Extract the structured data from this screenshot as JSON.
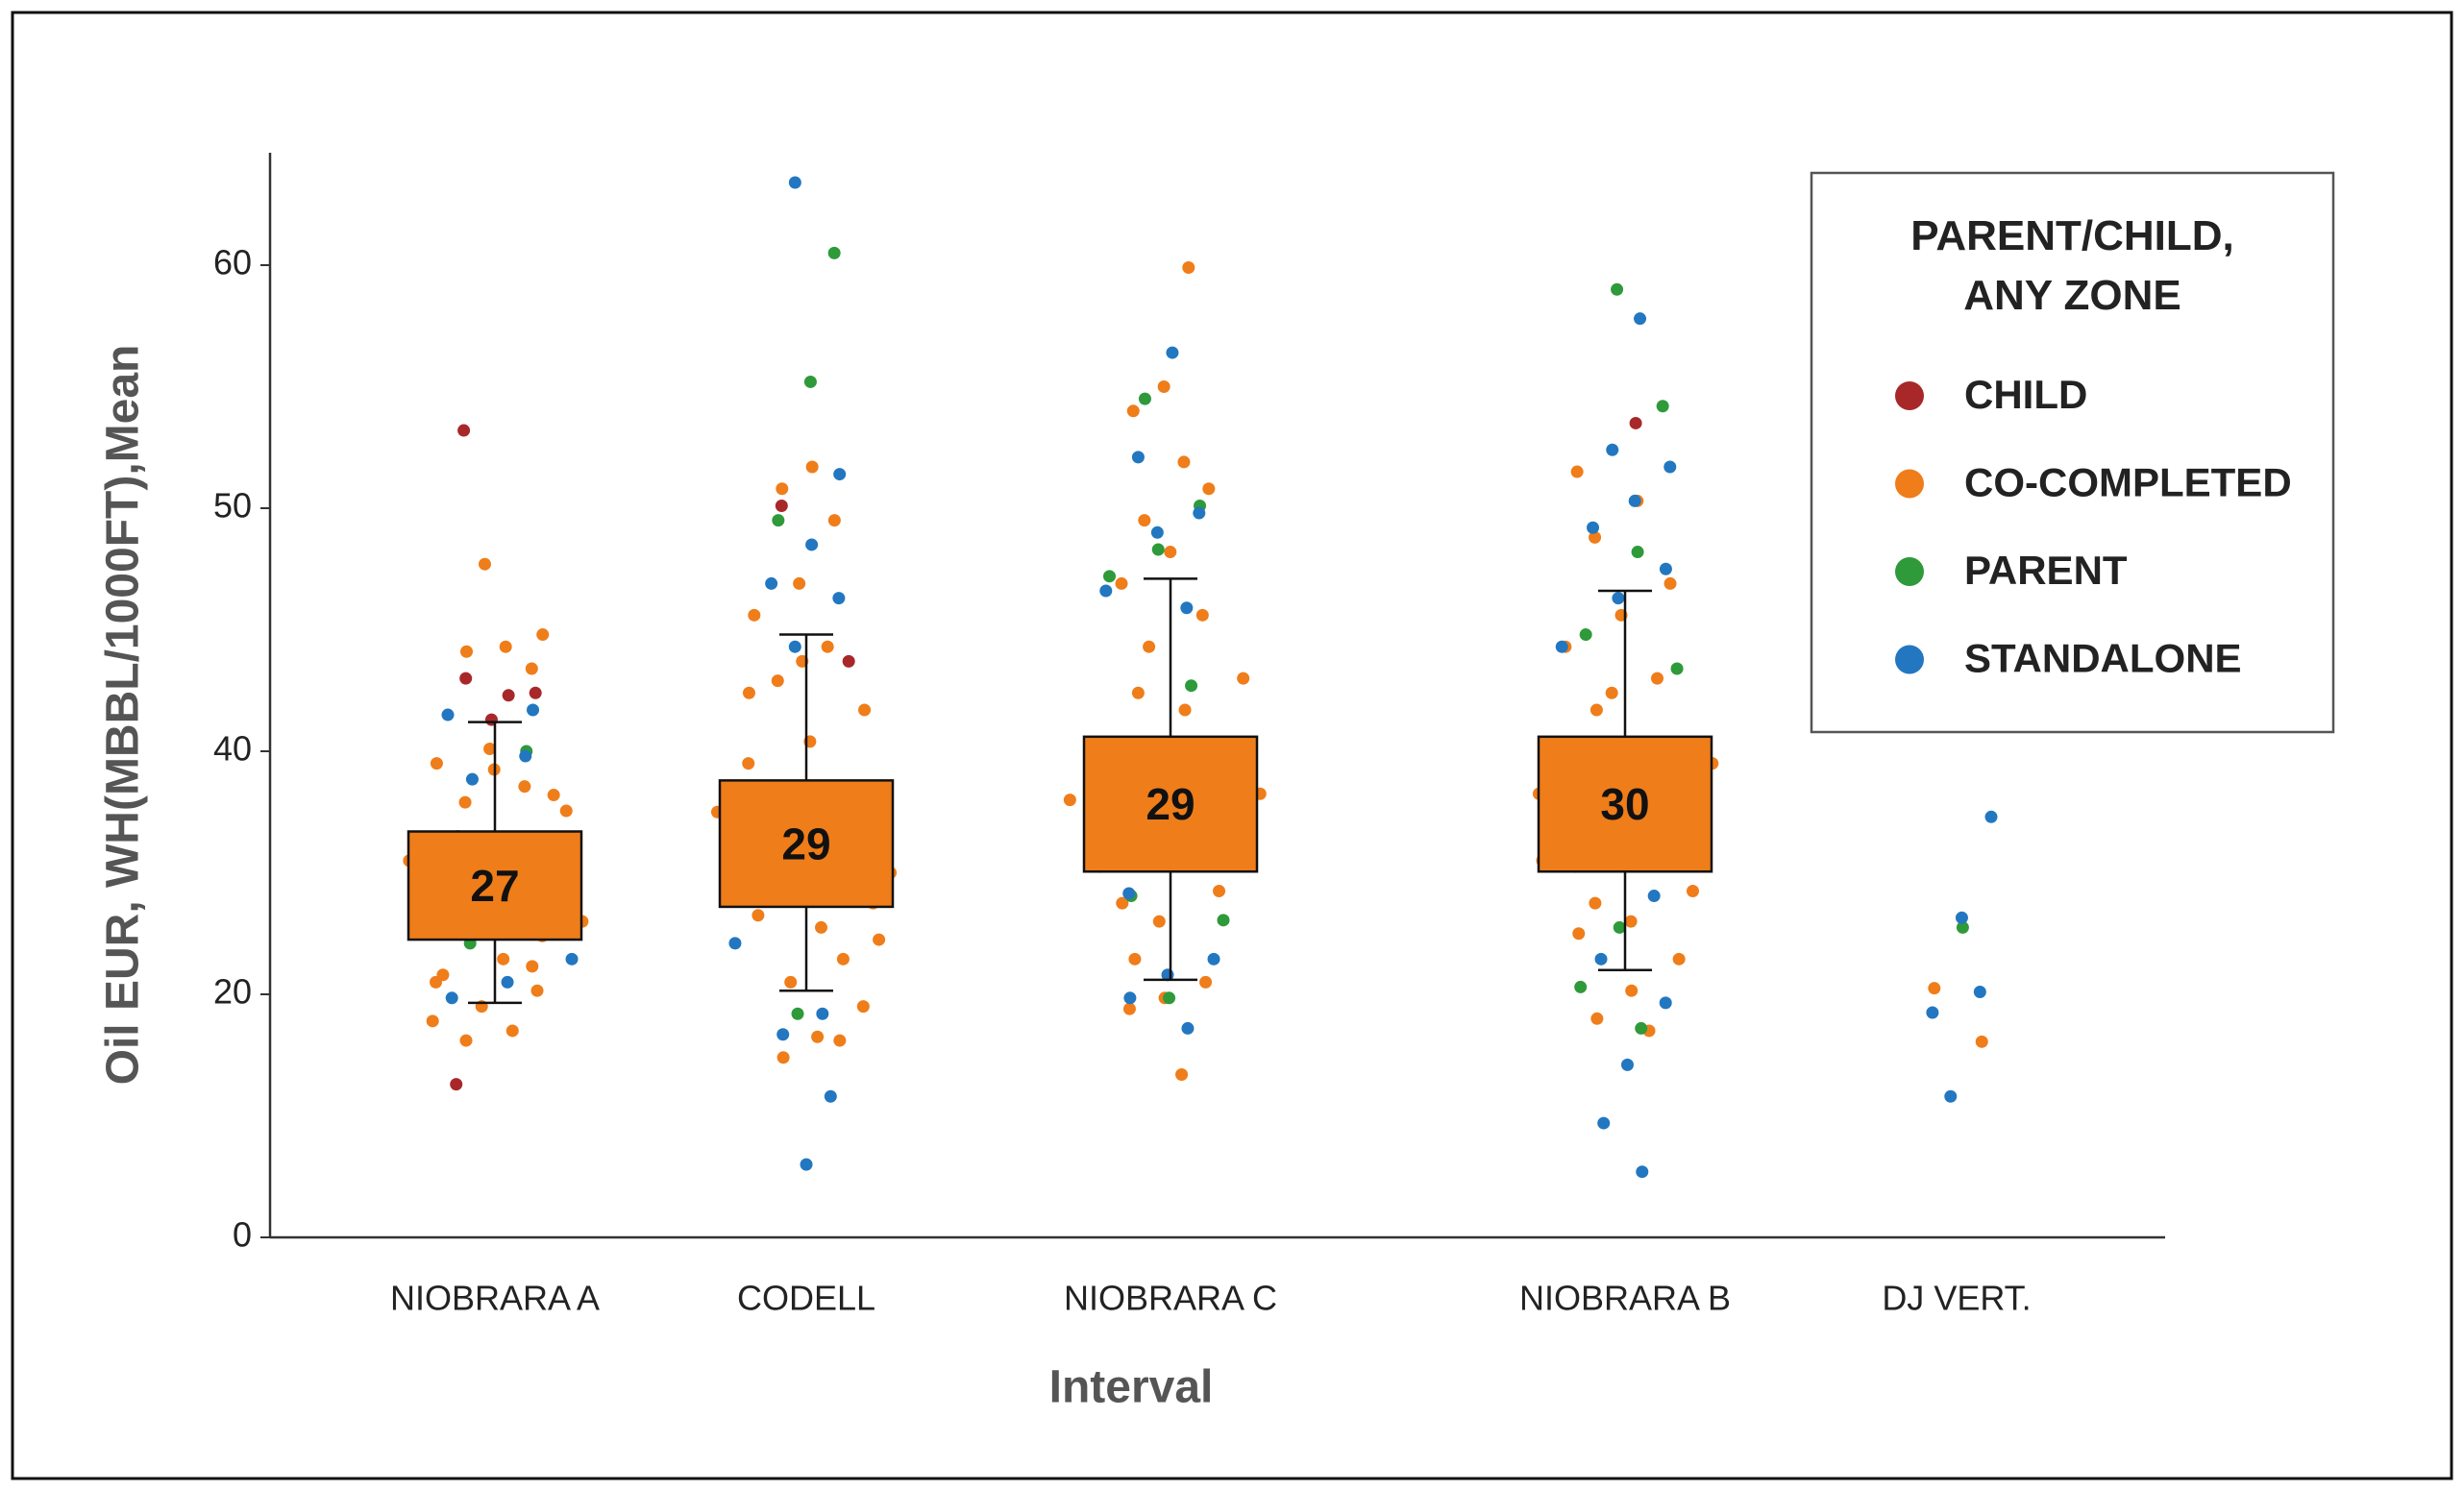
{
  "chart_data": {
    "type": "box-strip",
    "y_label": "Oil EUR, WH(MBBL/1000FT),Mean",
    "x_label": "Interval",
    "categories": [
      "NIOBRARA A",
      "CODELL",
      "NIOBRARA C",
      "NIOBRARA B",
      "DJ VERT."
    ],
    "ylim": [
      0,
      65
    ],
    "yticks": [
      0,
      20,
      40,
      50,
      60
    ],
    "legend_title": "PARENT/CHILD, ANY ZONE",
    "legend_position": "upper right",
    "boxes": {
      "color": "#ef7d1a",
      "whisker_low": [
        19.3,
        20.3,
        21.2,
        22.0,
        null
      ],
      "q1": [
        24.5,
        27.2,
        30.1,
        30.1,
        null
      ],
      "q3": [
        33.4,
        37.6,
        40.6,
        40.6,
        null
      ],
      "whisker_high": [
        41.2,
        44.8,
        47.1,
        46.6,
        null
      ],
      "means": [
        27,
        29,
        29,
        30,
        null
      ]
    },
    "series": [
      {
        "name": "CHILD",
        "color": "#a8282a",
        "values": [
          [
            53.2,
            42.3,
            43.0,
            42.4,
            41.3,
            12.6
          ],
          [
            50.1,
            43.7
          ],
          [],
          [
            53.5
          ],
          []
        ]
      },
      {
        "name": "CO-COMPLETED",
        "color": "#ef7d1a",
        "values": [
          [
            47.7,
            44.8,
            44.3,
            44.1,
            43.4,
            40.1,
            39.0,
            37.1,
            35.8,
            35.1,
            22.9,
            21.6,
            20.3,
            19.0,
            17.8,
            17.0,
            16.2,
            36.4,
            38.5,
            21.0,
            22.3,
            25,
            26,
            27,
            28,
            29,
            30,
            31,
            32,
            33,
            26.5,
            28.5,
            30.5,
            24.8,
            32.5
          ],
          [
            51.7,
            50.8,
            49.5,
            46.9,
            45.6,
            44.3,
            42.9,
            41.7,
            40.4,
            39.0,
            22.9,
            21.0,
            19.0,
            16.5,
            14.8,
            16.2,
            43.7,
            42.4,
            28,
            29,
            30,
            31,
            32,
            33,
            34,
            35,
            36,
            37,
            27.5,
            29.5,
            31.5,
            33.5,
            35.5,
            24.5,
            25.5,
            26.5
          ],
          [
            59.9,
            55.0,
            54.0,
            51.9,
            49.5,
            50.8,
            48.2,
            46.9,
            45.6,
            44.3,
            43.0,
            41.7,
            22.9,
            21.0,
            19.7,
            18.8,
            13.4,
            42.4,
            31,
            32,
            33,
            34,
            35,
            36,
            37,
            38,
            39,
            40,
            30.5,
            32.5,
            34.5,
            36.5,
            38.5,
            27.5,
            28.5,
            26
          ],
          [
            51.5,
            50.3,
            48.8,
            46.9,
            45.6,
            44.3,
            43.0,
            41.7,
            22.9,
            20.3,
            18.0,
            17.0,
            42.4,
            31,
            32,
            33,
            34,
            35,
            36,
            37,
            38,
            39,
            40,
            30.5,
            32.5,
            34.5,
            36.5,
            38.5,
            27.5,
            28.5,
            26,
            25
          ],
          [
            20.5,
            16.1
          ]
        ]
      },
      {
        "name": "PARENT",
        "color": "#2e9a3a",
        "values": [
          [
            40.0,
            24.2
          ],
          [
            60.5,
            55.2,
            49.5,
            35.8,
            18.4
          ],
          [
            54.5,
            50.1,
            48.3,
            47.2,
            42.7,
            28.1,
            26.1,
            19.7
          ],
          [
            59.0,
            54.2,
            48.2,
            44.8,
            43.4,
            25.5,
            20.6,
            17.2
          ],
          [
            25.5
          ]
        ]
      },
      {
        "name": "STANDALONE",
        "color": "#2277c0",
        "values": [
          [
            41.5,
            39.6,
            37.7,
            22.9,
            21.0,
            19.7,
            41.7
          ],
          [
            63.4,
            51.4,
            48.5,
            46.9,
            46.3,
            44.3,
            24.2,
            18.4,
            16.7,
            11.6,
            6.0
          ],
          [
            56.4,
            52.1,
            49.8,
            49.0,
            46.6,
            45.9,
            28.3,
            22.9,
            21.6,
            19.7,
            17.2
          ],
          [
            57.8,
            52.4,
            51.7,
            50.3,
            49.2,
            47.5,
            46.3,
            44.3,
            28.1,
            22.9,
            19.3,
            14.2,
            9.4,
            5.4
          ],
          [
            34.6,
            26.3,
            18.5,
            20.2,
            11.6
          ]
        ]
      }
    ]
  }
}
